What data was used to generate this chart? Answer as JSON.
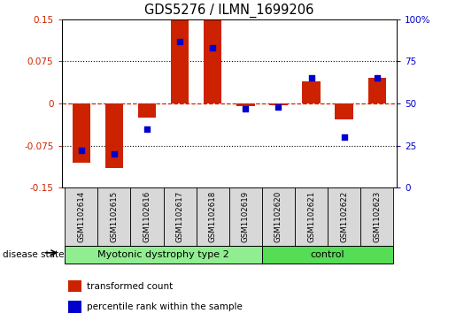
{
  "title": "GDS5276 / ILMN_1699206",
  "samples": [
    "GSM1102614",
    "GSM1102615",
    "GSM1102616",
    "GSM1102617",
    "GSM1102618",
    "GSM1102619",
    "GSM1102620",
    "GSM1102621",
    "GSM1102622",
    "GSM1102623"
  ],
  "red_values": [
    -0.105,
    -0.115,
    -0.025,
    0.148,
    0.15,
    -0.005,
    -0.003,
    0.04,
    -0.028,
    0.045
  ],
  "blue_values": [
    22,
    20,
    35,
    87,
    83,
    47,
    48,
    65,
    30,
    65
  ],
  "ylim_left": [
    -0.15,
    0.15
  ],
  "ylim_right": [
    0,
    100
  ],
  "yticks_left": [
    -0.15,
    -0.075,
    0,
    0.075,
    0.15
  ],
  "yticks_right": [
    0,
    25,
    50,
    75,
    100
  ],
  "ytick_labels_left": [
    "-0.15",
    "-0.075",
    "0",
    "0.075",
    "0.15"
  ],
  "ytick_labels_right": [
    "0",
    "25",
    "50",
    "75",
    "100%"
  ],
  "dotted_lines": [
    -0.075,
    0.075
  ],
  "group1_label": "Myotonic dystrophy type 2",
  "group2_label": "control",
  "group1_indices": [
    0,
    1,
    2,
    3,
    4,
    5
  ],
  "group2_indices": [
    6,
    7,
    8,
    9
  ],
  "disease_state_label": "disease state",
  "legend_red": "transformed count",
  "legend_blue": "percentile rank within the sample",
  "bar_color": "#cc2200",
  "dot_color": "#0000cc",
  "group1_color": "#90ee90",
  "group2_color": "#55dd55",
  "bg_color": "#d8d8d8",
  "bar_width": 0.55
}
